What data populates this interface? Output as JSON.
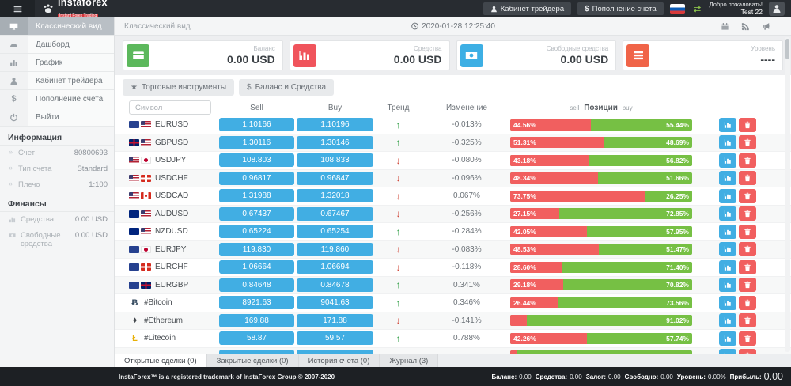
{
  "header": {
    "logo_text": "instaforex",
    "logo_subtitle": "Instant Forex Trading",
    "cabinet_button": "Кабинет трейдера",
    "deposit_prefix": "$",
    "deposit_button": "Пополнение счета",
    "welcome": "Добро пожаловать!",
    "username": "Test 22"
  },
  "sidebar": {
    "items": [
      {
        "id": "classic-view",
        "icon": "monitor-icon",
        "label": "Классический вид",
        "active": true
      },
      {
        "id": "dashboard",
        "icon": "gauge-icon",
        "label": "Дашборд",
        "active": false
      },
      {
        "id": "chart",
        "icon": "chart-icon",
        "label": "График",
        "active": false
      },
      {
        "id": "trader-cabinet",
        "icon": "person-icon",
        "label": "Кабинет трейдера",
        "active": false
      },
      {
        "id": "deposit",
        "icon": "dollar-icon",
        "label": "Пополнение счета",
        "active": false
      },
      {
        "id": "logout",
        "icon": "power-icon",
        "label": "Выйти",
        "active": false
      }
    ],
    "info_title": "Информация",
    "info_rows": [
      {
        "label": "Счет",
        "value": "80800693"
      },
      {
        "label": "Тип счета",
        "value": "Standard"
      },
      {
        "label": "Плечо",
        "value": "1:100"
      }
    ],
    "finance_title": "Финансы",
    "finance_rows": [
      {
        "icon": "chart-icon",
        "label": "Средства",
        "value": "0.00 USD"
      },
      {
        "icon": "banknote-icon",
        "label": "Свободные средства",
        "value": "0.00 USD"
      }
    ]
  },
  "topbar": {
    "breadcrumb": "Классический вид",
    "datetime": "2020-01-28 12:25:40"
  },
  "cards": [
    {
      "id": "balance",
      "icon": "credit-card-icon",
      "color": "#5cb85c",
      "label": "Баланс",
      "value": "0.00 USD"
    },
    {
      "id": "equity",
      "icon": "bar-chart-icon",
      "color": "#f0545c",
      "label": "Средства",
      "value": "0.00 USD"
    },
    {
      "id": "free-funds",
      "icon": "banknote-icon",
      "color": "#3dafe4",
      "label": "Свободные средства",
      "value": "0.00 USD"
    },
    {
      "id": "level",
      "icon": "list-icon",
      "color": "#f06448",
      "label": "Уровень",
      "value": "----"
    }
  ],
  "filters": [
    {
      "id": "trading-instruments",
      "icon_char": "★",
      "label": "Торговые инструменты"
    },
    {
      "id": "balance-and-funds",
      "icon_char": "$",
      "label": "Баланс и Средства"
    }
  ],
  "table": {
    "search_placeholder": "Символ",
    "headers": {
      "sell": "Sell",
      "buy": "Buy",
      "trend": "Тренд",
      "change": "Изменение",
      "pos_left": "sell",
      "pos_center": "Позиции",
      "pos_right": "buy"
    },
    "rows": [
      {
        "symbol": "EURUSD",
        "flags": [
          "eu",
          "us"
        ],
        "sell": "1.10166",
        "buy": "1.10196",
        "trend": "up",
        "change": "-0.013%",
        "sell_pct": 44.56,
        "buy_pct": 55.44,
        "sell_pct_label": "44.56%",
        "buy_pct_label": "55.44%"
      },
      {
        "symbol": "GBPUSD",
        "flags": [
          "gb",
          "us"
        ],
        "sell": "1.30116",
        "buy": "1.30146",
        "trend": "up",
        "change": "-0.325%",
        "sell_pct": 51.31,
        "buy_pct": 48.69,
        "sell_pct_label": "51.31%",
        "buy_pct_label": "48.69%"
      },
      {
        "symbol": "USDJPY",
        "flags": [
          "us",
          "jp"
        ],
        "sell": "108.803",
        "buy": "108.833",
        "trend": "down",
        "change": "-0.080%",
        "sell_pct": 43.18,
        "buy_pct": 56.82,
        "sell_pct_label": "43.18%",
        "buy_pct_label": "56.82%"
      },
      {
        "symbol": "USDCHF",
        "flags": [
          "us",
          "ch"
        ],
        "sell": "0.96817",
        "buy": "0.96847",
        "trend": "down",
        "change": "-0.096%",
        "sell_pct": 48.34,
        "buy_pct": 51.66,
        "sell_pct_label": "48.34%",
        "buy_pct_label": "51.66%"
      },
      {
        "symbol": "USDCAD",
        "flags": [
          "us",
          "ca"
        ],
        "sell": "1.31988",
        "buy": "1.32018",
        "trend": "down",
        "change": "0.067%",
        "sell_pct": 73.75,
        "buy_pct": 26.25,
        "sell_pct_label": "73.75%",
        "buy_pct_label": "26.25%"
      },
      {
        "symbol": "AUDUSD",
        "flags": [
          "au",
          "us"
        ],
        "sell": "0.67437",
        "buy": "0.67467",
        "trend": "down",
        "change": "-0.256%",
        "sell_pct": 27.15,
        "buy_pct": 72.85,
        "sell_pct_label": "27.15%",
        "buy_pct_label": "72.85%"
      },
      {
        "symbol": "NZDUSD",
        "flags": [
          "nz",
          "us"
        ],
        "sell": "0.65224",
        "buy": "0.65254",
        "trend": "up",
        "change": "-0.284%",
        "sell_pct": 42.05,
        "buy_pct": 57.95,
        "sell_pct_label": "42.05%",
        "buy_pct_label": "57.95%"
      },
      {
        "symbol": "EURJPY",
        "flags": [
          "eu",
          "jp"
        ],
        "sell": "119.830",
        "buy": "119.860",
        "trend": "down",
        "change": "-0.083%",
        "sell_pct": 48.53,
        "buy_pct": 51.47,
        "sell_pct_label": "48.53%",
        "buy_pct_label": "51.47%"
      },
      {
        "symbol": "EURCHF",
        "flags": [
          "eu",
          "ch"
        ],
        "sell": "1.06664",
        "buy": "1.06694",
        "trend": "down",
        "change": "-0.118%",
        "sell_pct": 28.6,
        "buy_pct": 71.4,
        "sell_pct_label": "28.60%",
        "buy_pct_label": "71.40%"
      },
      {
        "symbol": "EURGBP",
        "flags": [
          "eu",
          "gb"
        ],
        "sell": "0.84648",
        "buy": "0.84678",
        "trend": "up",
        "change": "0.341%",
        "sell_pct": 29.18,
        "buy_pct": 70.82,
        "sell_pct_label": "29.18%",
        "buy_pct_label": "70.82%"
      },
      {
        "symbol": "#Bitcoin",
        "crypto": "btc",
        "crypto_char": "Ƀ",
        "sell": "8921.63",
        "buy": "9041.63",
        "trend": "up",
        "change": "0.346%",
        "sell_pct": 26.44,
        "buy_pct": 73.56,
        "sell_pct_label": "26.44%",
        "buy_pct_label": "73.56%"
      },
      {
        "symbol": "#Ethereum",
        "crypto": "eth",
        "crypto_char": "♦",
        "sell": "169.88",
        "buy": "171.88",
        "trend": "down",
        "change": "-0.141%",
        "sell_pct": 8.98,
        "buy_pct": 91.02,
        "sell_pct_label": "",
        "buy_pct_label": "91.02%"
      },
      {
        "symbol": "#Litecoin",
        "crypto": "ltc",
        "crypto_char": "Ł",
        "sell": "58.87",
        "buy": "59.57",
        "trend": "up",
        "change": "0.788%",
        "sell_pct": 42.26,
        "buy_pct": 57.74,
        "sell_pct_label": "42.26%",
        "buy_pct_label": "57.74%"
      },
      {
        "symbol": "",
        "crypto": "unknown",
        "crypto_char": "•",
        "sell": "",
        "buy": "",
        "trend": "up",
        "change": "",
        "sell_pct": 3.5,
        "buy_pct": 96.5,
        "sell_pct_label": "",
        "buy_pct_label": "",
        "partial": true
      }
    ]
  },
  "tabs": [
    {
      "id": "open-deals",
      "label": "Открытые сделки (0)",
      "active": true
    },
    {
      "id": "closed-deals",
      "label": "Закрытые сделки (0)",
      "active": false
    },
    {
      "id": "account-history",
      "label": "История счета (0)",
      "active": false
    },
    {
      "id": "journal",
      "label": "Журнал (3)",
      "active": false
    }
  ],
  "footer": {
    "copyright": "InstaForex™ is a registered trademark of InstaForex Group © 2007-2020",
    "stats": [
      {
        "label": "Баланс:",
        "value": "0.00"
      },
      {
        "label": "Средства:",
        "value": "0.00"
      },
      {
        "label": "Залог:",
        "value": "0.00"
      },
      {
        "label": "Свободно:",
        "value": "0.00"
      },
      {
        "label": "Уровень:",
        "value": "0.00%"
      },
      {
        "label": "Прибыль:",
        "value": "0.00",
        "big": true
      }
    ]
  },
  "colors": {
    "accent_blue": "#41aee3",
    "sell_red": "#f15f5f",
    "buy_green": "#76c044",
    "up_green": "#2f9e44",
    "down_red": "#cf4436"
  }
}
